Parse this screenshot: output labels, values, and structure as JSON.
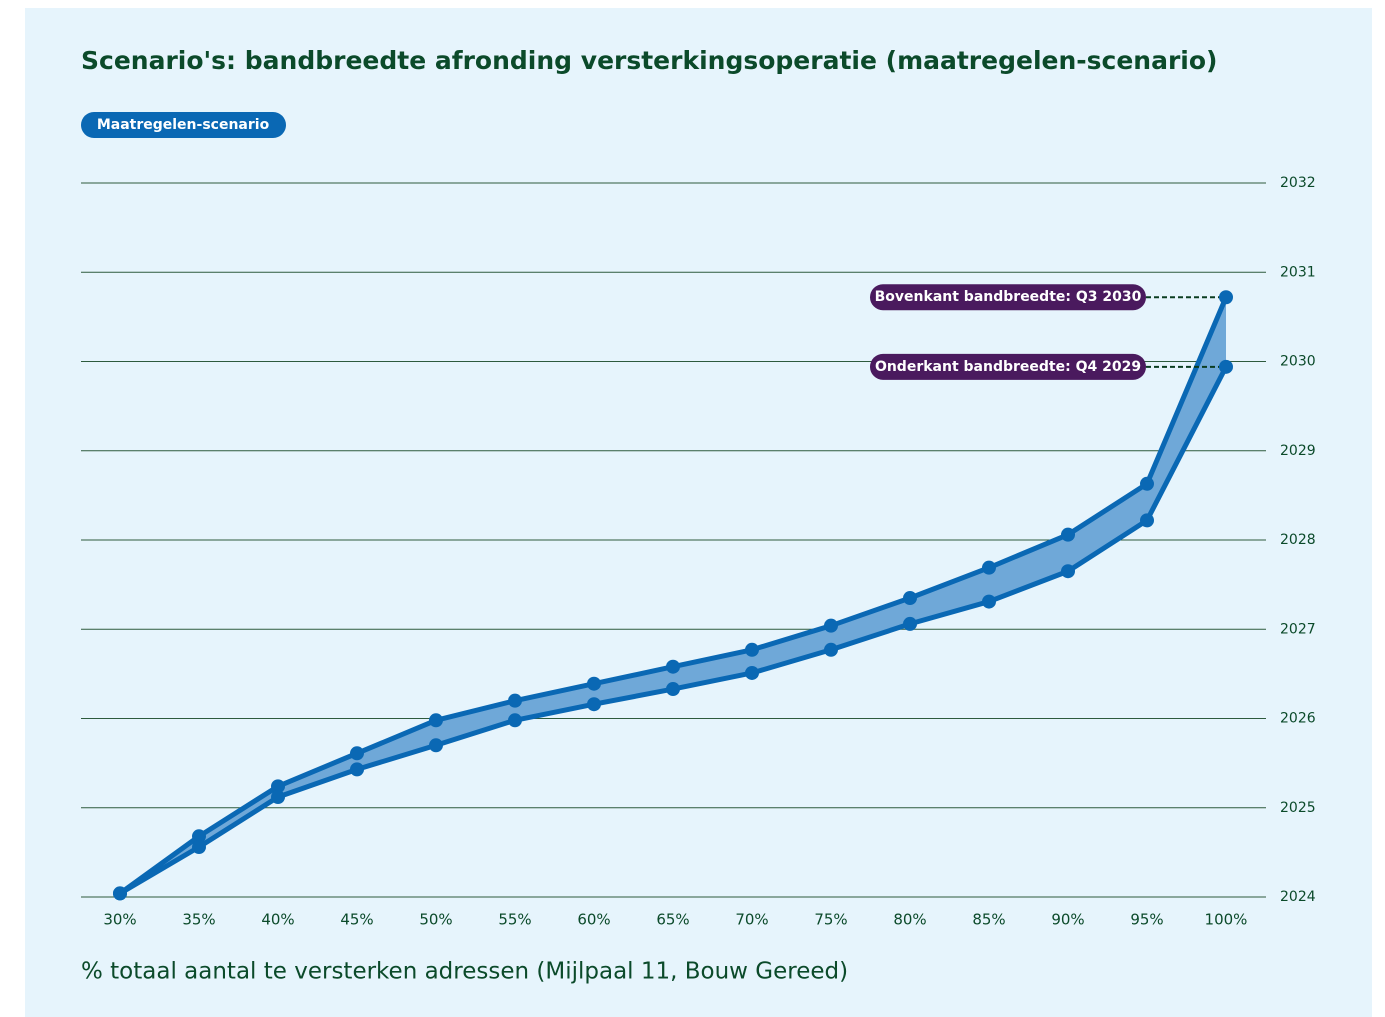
{
  "chart_data": {
    "type": "band",
    "title": "Scenario's: bandbreedte afronding versterkingsoperatie (maatregelen-scenario)",
    "legend": "Maatregelen-scenario",
    "x_label": "% totaal aantal te versterken adressen (Mijlpaal 11, Bouw Gereed)",
    "categories": [
      "30%",
      "35%",
      "40%",
      "45%",
      "50%",
      "55%",
      "60%",
      "65%",
      "70%",
      "75%",
      "80%",
      "85%",
      "90%",
      "95%",
      "100%"
    ],
    "series": [
      {
        "color": "#0a68b4",
        "annotation": "Bovenkant bandbreedte: Q3 2030",
        "values": [
          2024.04,
          2024.68,
          2025.24,
          2025.61,
          2025.98,
          2026.2,
          2026.39,
          2026.58,
          2026.77,
          2027.04,
          2027.35,
          2027.69,
          2028.06,
          2028.63,
          2030.72
        ]
      },
      {
        "color": "#0a68b4",
        "annotation": "Onderkant bandbreedte: Q4 2029",
        "values": [
          2024.04,
          2024.56,
          2025.12,
          2025.43,
          2025.7,
          2025.98,
          2026.16,
          2026.33,
          2026.51,
          2026.77,
          2027.06,
          2027.31,
          2027.65,
          2028.22,
          2029.94
        ]
      }
    ],
    "band_color": "#6fa8d8",
    "legend_color": "#0a68b4",
    "annotation_color": "#4a1a5e",
    "ylim": [
      2024,
      2032
    ],
    "yticks": [
      2024,
      2025,
      2026,
      2027,
      2028,
      2029,
      2030,
      2031,
      2032
    ],
    "grid": true
  }
}
